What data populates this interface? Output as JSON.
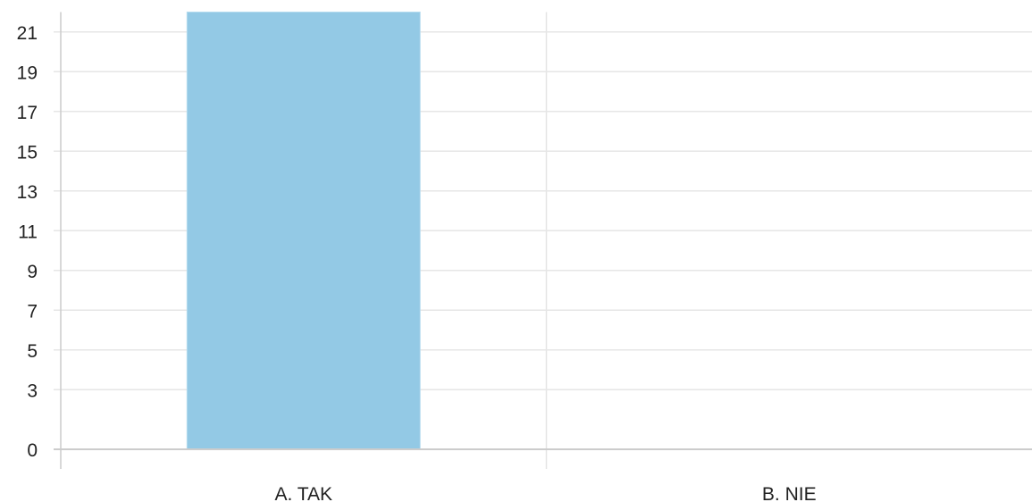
{
  "chart_data": {
    "type": "bar",
    "categories": [
      "A. TAK",
      "B. NIE"
    ],
    "values": [
      22,
      0
    ],
    "yticks": [
      0,
      3,
      5,
      7,
      9,
      11,
      13,
      15,
      17,
      19,
      21
    ],
    "ylim": [
      0,
      22
    ],
    "grid": true,
    "legend": "none",
    "bar_color": "#93c9e5",
    "grid_color": "#e6e6e6",
    "axis_color": "#cccccc"
  }
}
